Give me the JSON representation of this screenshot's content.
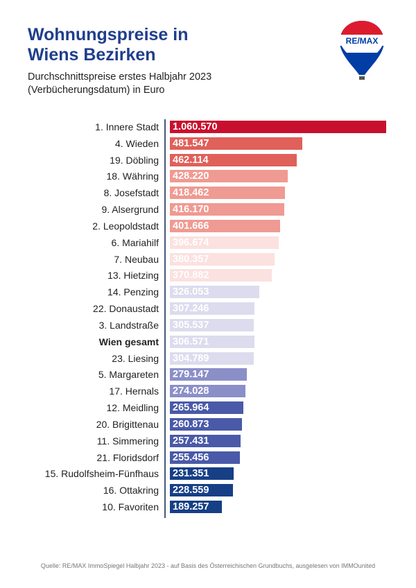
{
  "header": {
    "title": "Wohnungspreise in Wiens Bezirken",
    "subtitle": "Durchschnittspreise erstes Halbjahr 2023 (Verbücherungsdatum) in Euro"
  },
  "logo": {
    "text": "RE/MAX",
    "colors": [
      "#dc1c2e",
      "#ffffff",
      "#003da5"
    ]
  },
  "chart_data": {
    "type": "bar",
    "orientation": "horizontal",
    "categories": [
      "1. Innere Stadt",
      "4. Wieden",
      "19. Döbling",
      "18. Währing",
      "8. Josefstadt",
      "9. Alsergrund",
      "2. Leopoldstadt",
      "6. Mariahilf",
      "7. Neubau",
      "13. Hietzing",
      "14. Penzing",
      "22. Donaustadt",
      "3. Landstraße",
      "Wien gesamt",
      "23. Liesing",
      "5. Margareten",
      "17. Hernals",
      "12. Meidling",
      "20. Brigittenau",
      "11. Simmering",
      "21. Floridsdorf",
      "15. Rudolfsheim-Fünfhaus",
      "16. Ottakring",
      "10. Favoriten"
    ],
    "values": [
      1060570,
      481547,
      462114,
      428220,
      418462,
      416170,
      401666,
      396674,
      380357,
      370882,
      326053,
      307246,
      305537,
      306571,
      304789,
      279147,
      274028,
      265964,
      260873,
      257431,
      255456,
      231351,
      228559,
      189257
    ],
    "labels": [
      "1.060.570",
      "481.547",
      "462.114",
      "428.220",
      "418.462",
      "416.170",
      "401.666",
      "396.674",
      "380.357",
      "370.882",
      "326.053",
      "307.246",
      "305.537",
      "306.571",
      "304.789",
      "279.147",
      "274.028",
      "265.964",
      "260.873",
      "257.431",
      "255.456",
      "231.351",
      "228.559",
      "189.257"
    ],
    "colors": [
      "#c8102e",
      "#e0605a",
      "#e0605a",
      "#ef9a92",
      "#ef9a92",
      "#ef9a92",
      "#ef9a92",
      "#fbe1df",
      "#fbe1df",
      "#fbe1df",
      "#dcdcee",
      "#dcdcee",
      "#dcdcee",
      "#dcdcee",
      "#dcdcee",
      "#8b8fc8",
      "#8b8fc8",
      "#4a5aa8",
      "#4a5aa8",
      "#4a5aa8",
      "#4a5aa8",
      "#163f86",
      "#163f86",
      "#163f86"
    ],
    "highlight": "Wien gesamt",
    "grid": false
  },
  "footer": {
    "source": "Quelle: RE/MAX ImmoSpiegel Halbjahr 2023 - auf Basis des Österreichischen Grundbuchs, ausgelesen von IMMOunited"
  }
}
